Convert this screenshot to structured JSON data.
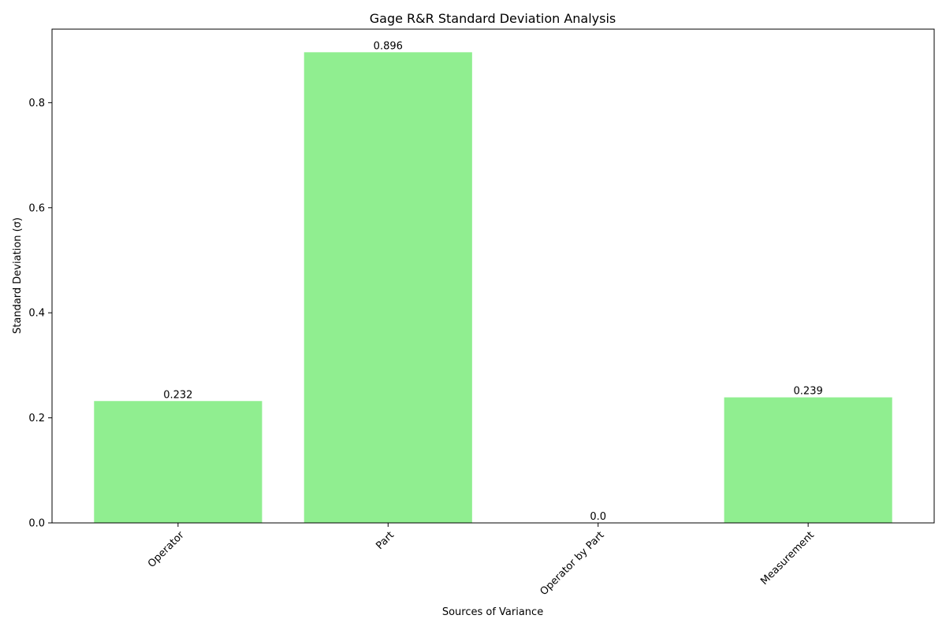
{
  "chart_data": {
    "type": "bar",
    "title": "Gage R&R Standard Deviation Analysis",
    "xlabel": "Sources of Variance",
    "ylabel": "Standard Deviation (σ)",
    "categories": [
      "Operator",
      "Part",
      "Operator by Part",
      "Measurement"
    ],
    "values": [
      0.232,
      0.896,
      0.0,
      0.239
    ],
    "data_labels": [
      "0.232",
      "0.896",
      "0.0",
      "0.239"
    ],
    "ylim": [
      0,
      0.94
    ],
    "yticks": [
      0.0,
      0.2,
      0.4,
      0.6,
      0.8
    ],
    "ytick_labels": [
      "0.0",
      "0.2",
      "0.4",
      "0.6",
      "0.8"
    ],
    "bar_color": "#90ee90",
    "grid": false,
    "legend": "none"
  }
}
